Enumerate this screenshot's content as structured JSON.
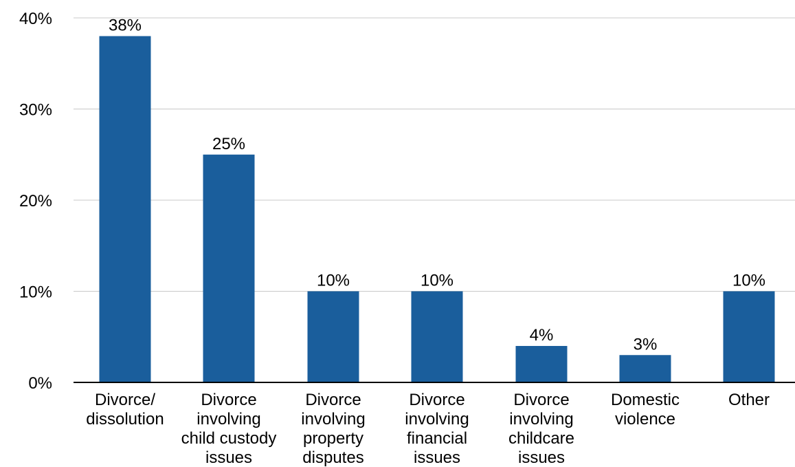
{
  "chart_data": {
    "type": "bar",
    "categories": [
      [
        "Divorce/",
        "dissolution"
      ],
      [
        "Divorce",
        "involving",
        "child custody",
        "issues"
      ],
      [
        "Divorce",
        "involving",
        "property",
        "disputes"
      ],
      [
        "Divorce",
        "involving",
        "financial",
        "issues"
      ],
      [
        "Divorce",
        "involving",
        "childcare",
        "issues"
      ],
      [
        "Domestic",
        "violence"
      ],
      [
        "Other"
      ]
    ],
    "values": [
      38,
      25,
      10,
      10,
      4,
      3,
      10
    ],
    "data_labels": [
      "38%",
      "25%",
      "10%",
      "10%",
      "4%",
      "3%",
      "10%"
    ],
    "y_ticks": [
      0,
      10,
      20,
      30,
      40
    ],
    "y_tick_labels": [
      "0%",
      "10%",
      "20%",
      "30%",
      "40%"
    ],
    "ylim": [
      0,
      40
    ],
    "title": "",
    "xlabel": "",
    "ylabel": "",
    "grid": true,
    "bar_color": "#1a5e9c",
    "grid_color": "#c8c8c8",
    "axis_color": "#000000"
  }
}
